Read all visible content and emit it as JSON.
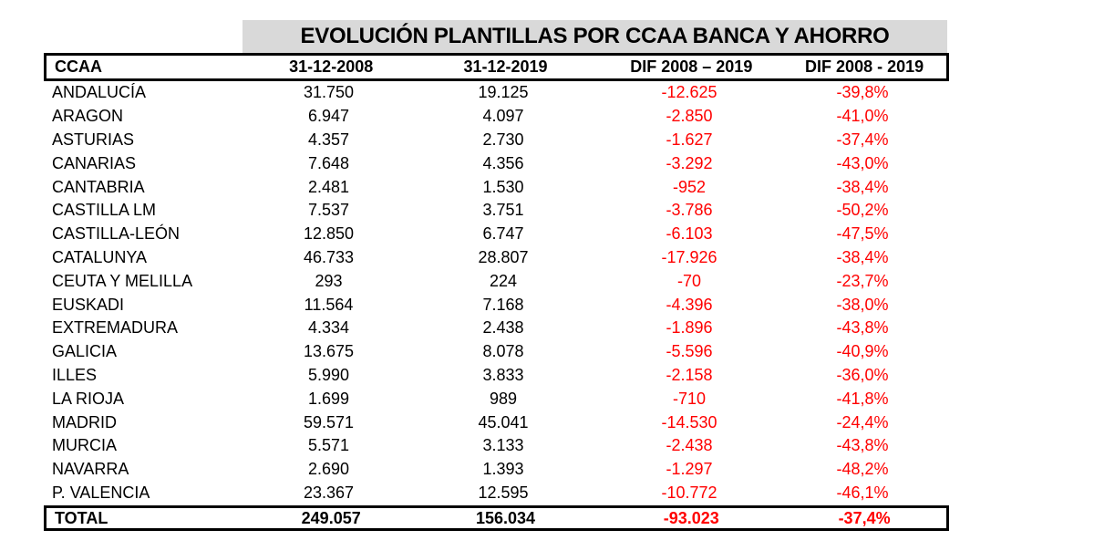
{
  "title": "EVOLUCIÓN PLANTILLAS POR CCAA BANCA Y AHORRO",
  "colors": {
    "title_bg": "#d9d9d9",
    "negative": "#ff0000",
    "border": "#000000"
  },
  "headers": [
    "CCAA",
    "31-12-2008",
    "31-12-2019",
    "DIF 2008 – 2019",
    "DIF 2008 - 2019"
  ],
  "rows": [
    [
      "ANDALUCÍA",
      "31.750",
      "19.125",
      "-12.625",
      "-39,8%"
    ],
    [
      "ARAGON",
      "6.947",
      "4.097",
      "-2.850",
      "-41,0%"
    ],
    [
      "ASTURIAS",
      "4.357",
      "2.730",
      "-1.627",
      "-37,4%"
    ],
    [
      "CANARIAS",
      "7.648",
      "4.356",
      "-3.292",
      "-43,0%"
    ],
    [
      "CANTABRIA",
      "2.481",
      "1.530",
      "-952",
      "-38,4%"
    ],
    [
      "CASTILLA LM",
      "7.537",
      "3.751",
      "-3.786",
      "-50,2%"
    ],
    [
      "CASTILLA-LEÓN",
      "12.850",
      "6.747",
      "-6.103",
      "-47,5%"
    ],
    [
      "CATALUNYA",
      "46.733",
      "28.807",
      "-17.926",
      "-38,4%"
    ],
    [
      "CEUTA Y MELILLA",
      "293",
      "224",
      "-70",
      "-23,7%"
    ],
    [
      "EUSKADI",
      "11.564",
      "7.168",
      "-4.396",
      "-38,0%"
    ],
    [
      "EXTREMADURA",
      "4.334",
      "2.438",
      "-1.896",
      "-43,8%"
    ],
    [
      "GALICIA",
      "13.675",
      "8.078",
      "-5.596",
      "-40,9%"
    ],
    [
      "ILLES",
      "5.990",
      "3.833",
      "-2.158",
      "-36,0%"
    ],
    [
      "LA RIOJA",
      "1.699",
      "989",
      "-710",
      "-41,8%"
    ],
    [
      "MADRID",
      "59.571",
      "45.041",
      "-14.530",
      "-24,4%"
    ],
    [
      "MURCIA",
      "5.571",
      "3.133",
      "-2.438",
      "-43,8%"
    ],
    [
      "NAVARRA",
      "2.690",
      "1.393",
      "-1.297",
      "-48,2%"
    ],
    [
      "P. VALENCIA",
      "23.367",
      "12.595",
      "-10.772",
      "-46,1%"
    ]
  ],
  "total": [
    "TOTAL",
    "249.057",
    "156.034",
    "-93.023",
    "-37,4%"
  ]
}
